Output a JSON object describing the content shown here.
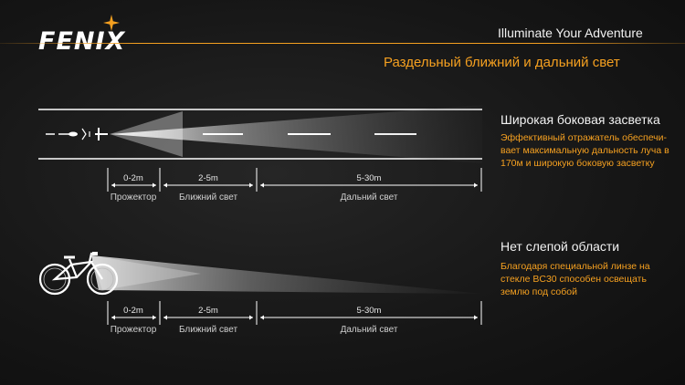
{
  "header": {
    "brand": "FENIX",
    "tagline": "Illuminate Your Adventure",
    "slide_title": "Раздельный ближний и дальний свет"
  },
  "colors": {
    "accent": "#f5a020",
    "background": "#141414",
    "text": "#f2f2f2"
  },
  "section_wide": {
    "title": "Широкая боковая засветка",
    "description": "Эффективный отражатель обеспечи- вает максимальную дальность луча в 170м и широкую боковую засветку",
    "description_lines": [
      "Эффективный отражатель обеспечи-",
      "вает максимальную дальность луча в",
      "170м и широкую боковую засветку"
    ],
    "ranges": [
      "0-2m",
      "2-5m",
      "5-30m"
    ],
    "range_labels": [
      "Прожектор",
      "Ближний свет",
      "Дальний свет"
    ]
  },
  "section_blind": {
    "title": "Нет слепой области",
    "description": "Благодаря специальной линзе на стекле BC30 способен освещать землю под собой",
    "description_lines": [
      "Благодаря специальной линзе на",
      "стекле BC30 способен освещать",
      "землю под собой"
    ],
    "ranges": [
      "0-2m",
      "2-5m",
      "5-30m"
    ],
    "range_labels": [
      "Прожектор",
      "Ближний свет",
      "Дальний свет"
    ]
  },
  "icons": [
    "fenix-star-icon",
    "bicycle-icon",
    "bike-topview-icon"
  ]
}
